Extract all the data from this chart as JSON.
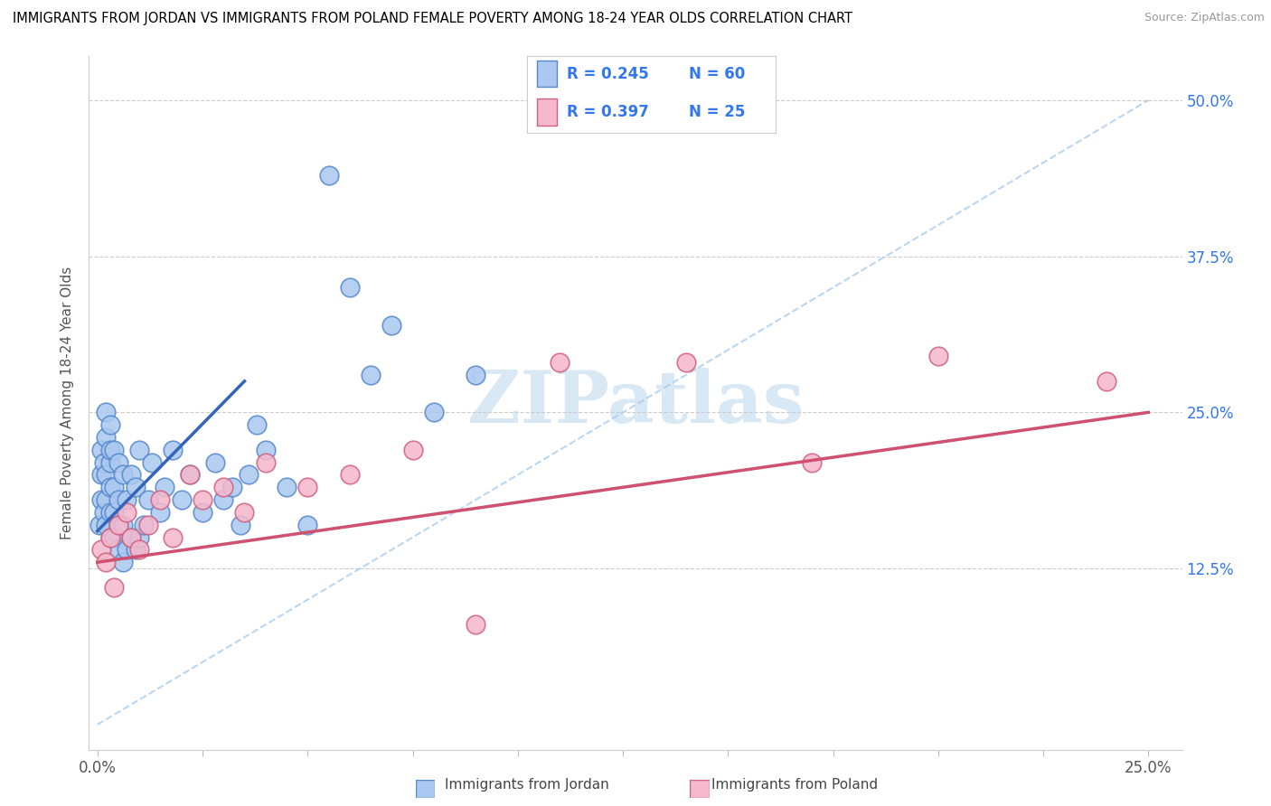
{
  "title": "IMMIGRANTS FROM JORDAN VS IMMIGRANTS FROM POLAND FEMALE POVERTY AMONG 18-24 YEAR OLDS CORRELATION CHART",
  "source": "Source: ZipAtlas.com",
  "ylabel": "Female Poverty Among 18-24 Year Olds",
  "R_jordan": 0.245,
  "N_jordan": 60,
  "R_poland": 0.397,
  "N_poland": 25,
  "jordan_fill": "#aac8f0",
  "jordan_edge": "#5588cc",
  "poland_fill": "#f5b8cc",
  "poland_edge": "#d06080",
  "jordan_line_color": "#3366bb",
  "poland_line_color": "#d05070",
  "diag_color": "#aaccee",
  "legend_text_color": "#3377ee",
  "watermark_color": "#d8e8f5",
  "jordan_x": [
    0.0005,
    0.001,
    0.001,
    0.001,
    0.0015,
    0.0015,
    0.002,
    0.002,
    0.002,
    0.002,
    0.002,
    0.003,
    0.003,
    0.003,
    0.003,
    0.003,
    0.003,
    0.004,
    0.004,
    0.004,
    0.004,
    0.005,
    0.005,
    0.005,
    0.005,
    0.006,
    0.006,
    0.006,
    0.007,
    0.007,
    0.008,
    0.008,
    0.009,
    0.009,
    0.01,
    0.01,
    0.011,
    0.012,
    0.013,
    0.015,
    0.016,
    0.018,
    0.02,
    0.022,
    0.025,
    0.028,
    0.03,
    0.032,
    0.034,
    0.036,
    0.038,
    0.04,
    0.045,
    0.05,
    0.055,
    0.06,
    0.065,
    0.07,
    0.08,
    0.09
  ],
  "jordan_y": [
    0.16,
    0.18,
    0.2,
    0.22,
    0.17,
    0.21,
    0.16,
    0.18,
    0.2,
    0.23,
    0.25,
    0.15,
    0.17,
    0.19,
    0.21,
    0.22,
    0.24,
    0.15,
    0.17,
    0.19,
    0.22,
    0.14,
    0.16,
    0.18,
    0.21,
    0.13,
    0.16,
    0.2,
    0.14,
    0.18,
    0.15,
    0.2,
    0.14,
    0.19,
    0.15,
    0.22,
    0.16,
    0.18,
    0.21,
    0.17,
    0.19,
    0.22,
    0.18,
    0.2,
    0.17,
    0.21,
    0.18,
    0.19,
    0.16,
    0.2,
    0.24,
    0.22,
    0.19,
    0.16,
    0.44,
    0.35,
    0.28,
    0.32,
    0.25,
    0.28
  ],
  "poland_x": [
    0.001,
    0.002,
    0.003,
    0.004,
    0.005,
    0.007,
    0.008,
    0.01,
    0.012,
    0.015,
    0.018,
    0.022,
    0.025,
    0.03,
    0.035,
    0.04,
    0.05,
    0.06,
    0.075,
    0.09,
    0.11,
    0.14,
    0.17,
    0.2,
    0.24
  ],
  "poland_y": [
    0.14,
    0.13,
    0.15,
    0.11,
    0.16,
    0.17,
    0.15,
    0.14,
    0.16,
    0.18,
    0.15,
    0.2,
    0.18,
    0.19,
    0.17,
    0.21,
    0.19,
    0.2,
    0.22,
    0.08,
    0.29,
    0.29,
    0.21,
    0.295,
    0.275
  ],
  "jordan_trend_x": [
    0.0,
    0.035
  ],
  "jordan_trend_y": [
    0.155,
    0.275
  ],
  "poland_trend_x": [
    0.0,
    0.25
  ],
  "poland_trend_y": [
    0.13,
    0.25
  ],
  "xlim": [
    -0.002,
    0.258
  ],
  "ylim": [
    -0.02,
    0.535
  ],
  "xtick_positions": [
    0.0,
    0.025,
    0.05,
    0.075,
    0.1,
    0.125,
    0.15,
    0.175,
    0.2,
    0.225,
    0.25
  ],
  "ytick_positions": [
    0.125,
    0.25,
    0.375,
    0.5
  ]
}
